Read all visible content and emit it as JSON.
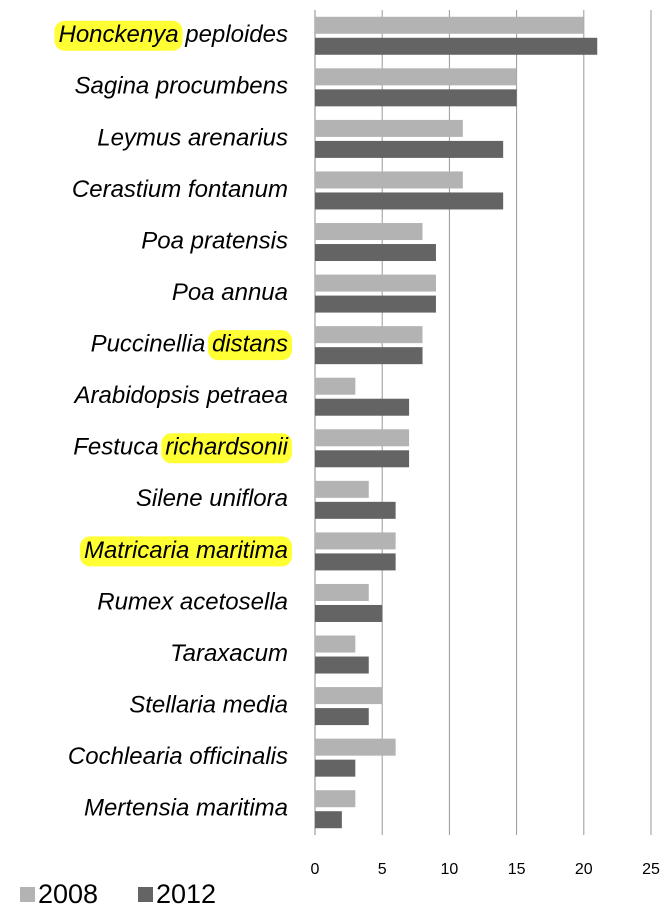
{
  "chart_data": {
    "type": "bar",
    "orientation": "horizontal",
    "categories": [
      "Honckenya peploides",
      "Sagina procumbens",
      "Leymus arenarius",
      "Cerastium fontanum",
      "Poa pratensis",
      "Poa annua",
      "Puccinellia distans",
      "Arabidopsis petraea",
      "Festuca richardsonii",
      "Silene uniflora",
      "Matricaria maritima",
      "Rumex acetosella",
      "Taraxacum",
      "Stellaria media",
      "Cochlearia officinalis",
      "Mertensia maritima"
    ],
    "highlighted": [
      "Honckenya",
      null,
      null,
      null,
      null,
      null,
      "distans",
      null,
      "richardsonii",
      null,
      "Matricaria maritima",
      null,
      null,
      null,
      null,
      null
    ],
    "highlight_color": "#ffff33",
    "series": [
      {
        "name": "2008",
        "color": "#b3b3b3",
        "values": [
          20,
          15,
          11,
          11,
          8,
          9,
          8,
          3,
          7,
          4,
          6,
          4,
          3,
          5,
          6,
          3
        ]
      },
      {
        "name": "2012",
        "color": "#646464",
        "values": [
          21,
          15,
          14,
          14,
          9,
          9,
          8,
          7,
          7,
          6,
          6,
          5,
          4,
          4,
          3,
          2
        ]
      }
    ],
    "xlim": [
      0,
      25
    ],
    "xticks": [
      0,
      5,
      10,
      15,
      20,
      25
    ],
    "grid": true,
    "legend": "bottom-left"
  }
}
